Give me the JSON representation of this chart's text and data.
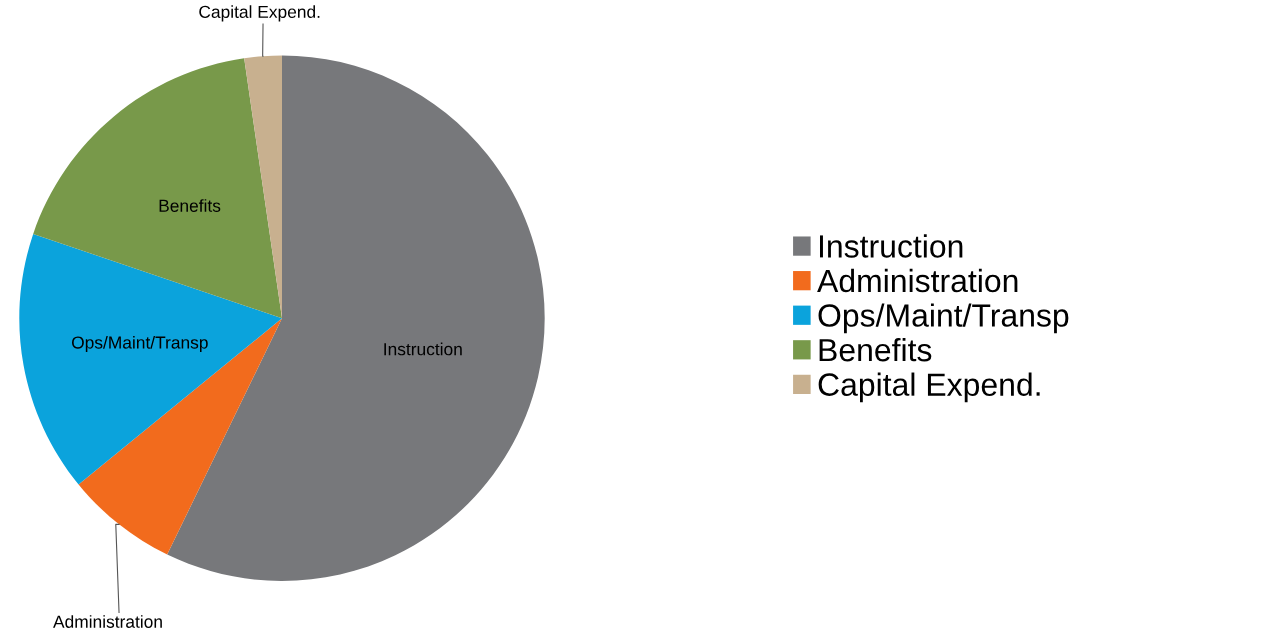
{
  "chart_data": {
    "type": "pie",
    "categories": [
      "Instruction",
      "Administration",
      "Ops/Maint/Transp",
      "Benefits",
      "Capital Expend."
    ],
    "values": [
      57.2,
      6.9,
      16.1,
      17.5,
      2.3
    ],
    "colors": [
      "#77787b",
      "#f26b1d",
      "#0ba3dc",
      "#78994a",
      "#c8b08f"
    ],
    "data_labels": false,
    "legend": "right"
  }
}
